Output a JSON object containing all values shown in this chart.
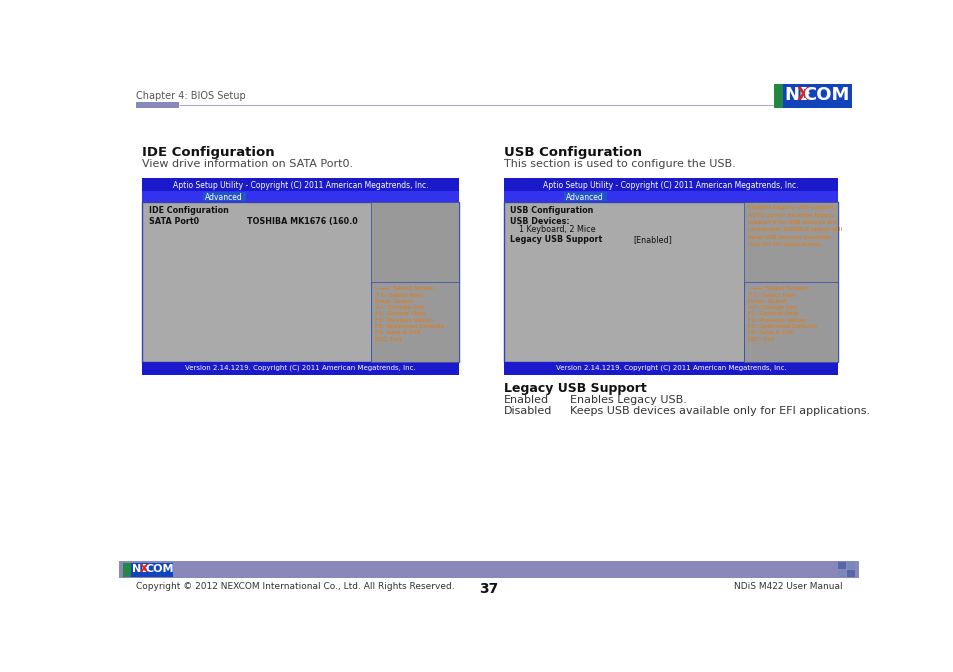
{
  "page_bg": "#ffffff",
  "header_text": "Chapter 4: BIOS Setup",
  "header_bar_color": "#7777aa",
  "header_line_color": "#aaaacc",
  "left_section_title": "IDE Configuration",
  "left_section_desc": "View drive information on SATA Port0.",
  "right_section_title": "USB Configuration",
  "right_section_desc": "This section is used to configure the USB.",
  "bios_header_bg": "#1a1acc",
  "bios_header_text": "Aptio Setup Utility - Copyright (C) 2011 American Megatrends, Inc.",
  "bios_tab_row_bg": "#3333ee",
  "bios_tab_bg": "#4455cc",
  "bios_tab_text": "Advanced",
  "bios_body_bg": "#aaaaaa",
  "bios_left_panel_bg": "#aaaaaa",
  "bios_right_panel_bg": "#999999",
  "bios_border_color": "#3344aa",
  "bios_footer_bg": "#1a1acc",
  "bios_footer_text": "Version 2.14.1219. Copyright (C) 2011 American Megatrends, Inc.",
  "ide_label": "IDE Configuration",
  "ide_sata_label": "SATA Port0",
  "ide_sata_value": "TOSHIBA MK1676 (160.0",
  "usb_label": "USB Configuration",
  "usb_devices_label": "USB Devices:",
  "usb_devices_value": "1 Keyboard, 2 Mice",
  "usb_legacy_label": "Legacy USB Support",
  "usb_legacy_value": "[Enabled]",
  "usb_help_text": "Enables Legacy USB support.\nAUTO option disables legacy\nsupport if no USB devices are\nconnected. DISABLE option will\nkeep USB devices available\nonly for EFI applications.",
  "bios_help_text": "--→←: Select Screen\n↑↓: Select Item\nEnter: Select\n+/-: Change Opt.\nF1: General Help\nF2: Previous Values\nF3: Optimized Defaults\nF4: Save & Exit\nESC: Exit",
  "legacy_support_title": "Legacy USB Support",
  "legacy_enabled_label": "Enabled",
  "legacy_enabled_desc": "Enables Legacy USB.",
  "legacy_disabled_label": "Disabled",
  "legacy_disabled_desc": "Keeps USB devices available only for EFI applications.",
  "footer_bar_bg": "#8888bb",
  "footer_copyright": "Copyright © 2012 NEXCOM International Co., Ltd. All Rights Reserved.",
  "footer_page": "37",
  "footer_manual": "NDiS M422 User Manual",
  "nexcom_logo_bg": "#1144bb",
  "nexcom_logo_ne": "NE",
  "nexcom_logo_x": "X",
  "nexcom_logo_com": "COM",
  "nexcom_x_color": "#dd3322",
  "text_dark": "#222222",
  "text_mid": "#444444",
  "text_white": "#ffffff",
  "text_orange": "#ee7700",
  "text_blue_link": "#3333cc"
}
